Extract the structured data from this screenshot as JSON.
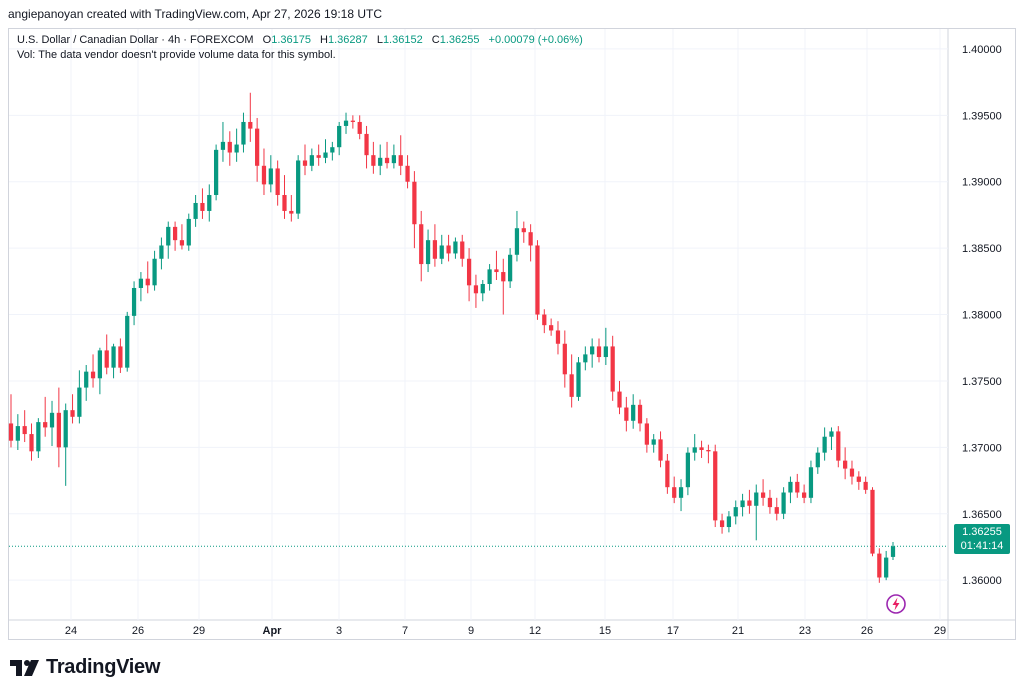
{
  "header": {
    "credit": "angiepanoyan created with TradingView.com, Apr 27, 2026 19:18 UTC"
  },
  "legend": {
    "symbol": "U.S. Dollar / Canadian Dollar · 4h · FOREXCOM",
    "o_label": "O",
    "o_value": "1.36175",
    "h_label": "H",
    "h_value": "1.36287",
    "l_label": "L",
    "l_value": "1.36152",
    "c_label": "C",
    "c_value": "1.36255",
    "change": "+0.00079 (+0.06%)",
    "volume_note": "Vol: The data vendor doesn't provide volume data for this symbol."
  },
  "price_badge": {
    "price": "1.36255",
    "countdown": "01:41:14"
  },
  "brand": {
    "name": "TradingView"
  },
  "colors": {
    "up": "#089981",
    "down": "#f23645",
    "grid": "#f0f3fa",
    "axis_text": "#131722"
  },
  "icons": {
    "replay": "bolt-circle-icon"
  },
  "chart_data": {
    "type": "candlestick",
    "y_axis": {
      "min": 1.357,
      "max": 1.4015,
      "ticks": [
        "1.40000",
        "1.39500",
        "1.39000",
        "1.38500",
        "1.38000",
        "1.37500",
        "1.37000",
        "1.36500",
        "1.36000"
      ]
    },
    "x_axis": {
      "ticks": [
        "24",
        "26",
        "29",
        "Apr",
        "3",
        "7",
        "9",
        "12",
        "15",
        "17",
        "21",
        "23",
        "26",
        "29"
      ]
    },
    "grid": true,
    "last_price": 1.36255,
    "candles": [
      [
        1.3718,
        1.374,
        1.37,
        1.3705
      ],
      [
        1.3705,
        1.3725,
        1.3698,
        1.3716
      ],
      [
        1.3716,
        1.3728,
        1.3704,
        1.371
      ],
      [
        1.371,
        1.3718,
        1.369,
        1.3697
      ],
      [
        1.3697,
        1.3722,
        1.3692,
        1.3719
      ],
      [
        1.3719,
        1.3738,
        1.3708,
        1.3715
      ],
      [
        1.3715,
        1.3735,
        1.3701,
        1.3726
      ],
      [
        1.3726,
        1.3745,
        1.3685,
        1.37
      ],
      [
        1.37,
        1.3733,
        1.3671,
        1.3728
      ],
      [
        1.3728,
        1.374,
        1.3718,
        1.3723
      ],
      [
        1.3723,
        1.3758,
        1.3718,
        1.3745
      ],
      [
        1.3745,
        1.3762,
        1.3735,
        1.3757
      ],
      [
        1.3757,
        1.377,
        1.3745,
        1.3752
      ],
      [
        1.3752,
        1.3775,
        1.374,
        1.3773
      ],
      [
        1.3773,
        1.3785,
        1.3755,
        1.376
      ],
      [
        1.376,
        1.3778,
        1.3752,
        1.3776
      ],
      [
        1.3776,
        1.3782,
        1.3756,
        1.376
      ],
      [
        1.376,
        1.3802,
        1.3757,
        1.3799
      ],
      [
        1.3799,
        1.3825,
        1.3792,
        1.382
      ],
      [
        1.382,
        1.3832,
        1.381,
        1.3827
      ],
      [
        1.3827,
        1.384,
        1.3816,
        1.3822
      ],
      [
        1.3822,
        1.3848,
        1.3818,
        1.3842
      ],
      [
        1.3842,
        1.3858,
        1.3834,
        1.3852
      ],
      [
        1.3852,
        1.387,
        1.3842,
        1.3866
      ],
      [
        1.3866,
        1.387,
        1.3848,
        1.3856
      ],
      [
        1.3856,
        1.3868,
        1.3849,
        1.3852
      ],
      [
        1.3852,
        1.3876,
        1.3848,
        1.3872
      ],
      [
        1.3872,
        1.389,
        1.3866,
        1.3884
      ],
      [
        1.3884,
        1.3895,
        1.3872,
        1.3878
      ],
      [
        1.3878,
        1.3898,
        1.387,
        1.389
      ],
      [
        1.389,
        1.3928,
        1.3886,
        1.3924
      ],
      [
        1.3924,
        1.3945,
        1.3915,
        1.393
      ],
      [
        1.393,
        1.3938,
        1.3912,
        1.3922
      ],
      [
        1.3922,
        1.394,
        1.3915,
        1.3928
      ],
      [
        1.3928,
        1.3952,
        1.3922,
        1.3945
      ],
      [
        1.3945,
        1.3967,
        1.393,
        1.394
      ],
      [
        1.394,
        1.3948,
        1.39,
        1.3912
      ],
      [
        1.3912,
        1.3925,
        1.389,
        1.3898
      ],
      [
        1.3898,
        1.392,
        1.3892,
        1.391
      ],
      [
        1.391,
        1.3916,
        1.3882,
        1.389
      ],
      [
        1.389,
        1.3905,
        1.3872,
        1.3878
      ],
      [
        1.3878,
        1.389,
        1.387,
        1.3876
      ],
      [
        1.3876,
        1.392,
        1.3872,
        1.3916
      ],
      [
        1.3916,
        1.3928,
        1.3905,
        1.3912
      ],
      [
        1.3912,
        1.3925,
        1.3908,
        1.392
      ],
      [
        1.392,
        1.3928,
        1.3912,
        1.3918
      ],
      [
        1.3918,
        1.3932,
        1.3914,
        1.3922
      ],
      [
        1.3922,
        1.393,
        1.3916,
        1.3926
      ],
      [
        1.3926,
        1.3945,
        1.392,
        1.3942
      ],
      [
        1.3942,
        1.3952,
        1.3936,
        1.3946
      ],
      [
        1.3946,
        1.395,
        1.394,
        1.3945
      ],
      [
        1.3945,
        1.395,
        1.3932,
        1.3936
      ],
      [
        1.3936,
        1.3942,
        1.391,
        1.392
      ],
      [
        1.392,
        1.393,
        1.3906,
        1.3912
      ],
      [
        1.3912,
        1.3928,
        1.3905,
        1.3918
      ],
      [
        1.3918,
        1.393,
        1.391,
        1.3914
      ],
      [
        1.3914,
        1.3928,
        1.391,
        1.392
      ],
      [
        1.392,
        1.3935,
        1.3905,
        1.3912
      ],
      [
        1.3912,
        1.392,
        1.3895,
        1.39
      ],
      [
        1.39,
        1.3908,
        1.385,
        1.3868
      ],
      [
        1.3868,
        1.3878,
        1.3825,
        1.3838
      ],
      [
        1.3838,
        1.3864,
        1.3832,
        1.3856
      ],
      [
        1.3856,
        1.3868,
        1.3836,
        1.3842
      ],
      [
        1.3842,
        1.386,
        1.3838,
        1.3852
      ],
      [
        1.3852,
        1.386,
        1.384,
        1.3846
      ],
      [
        1.3846,
        1.3858,
        1.3842,
        1.3855
      ],
      [
        1.3855,
        1.386,
        1.3836,
        1.3842
      ],
      [
        1.3842,
        1.385,
        1.381,
        1.3822
      ],
      [
        1.3822,
        1.383,
        1.3805,
        1.3816
      ],
      [
        1.3816,
        1.3826,
        1.381,
        1.3823
      ],
      [
        1.3823,
        1.3838,
        1.3818,
        1.3834
      ],
      [
        1.3834,
        1.3848,
        1.3826,
        1.3832
      ],
      [
        1.3832,
        1.3842,
        1.38,
        1.3825
      ],
      [
        1.3825,
        1.385,
        1.382,
        1.3845
      ],
      [
        1.3845,
        1.3878,
        1.384,
        1.3865
      ],
      [
        1.3865,
        1.387,
        1.3854,
        1.3862
      ],
      [
        1.3862,
        1.3868,
        1.384,
        1.3852
      ],
      [
        1.3852,
        1.3856,
        1.3796,
        1.38
      ],
      [
        1.38,
        1.3804,
        1.3786,
        1.3792
      ],
      [
        1.3792,
        1.3797,
        1.3784,
        1.3788
      ],
      [
        1.3788,
        1.3795,
        1.377,
        1.3778
      ],
      [
        1.3778,
        1.3788,
        1.3745,
        1.3755
      ],
      [
        1.3755,
        1.377,
        1.373,
        1.3738
      ],
      [
        1.3738,
        1.3768,
        1.3735,
        1.3764
      ],
      [
        1.3764,
        1.3776,
        1.3758,
        1.377
      ],
      [
        1.377,
        1.3782,
        1.376,
        1.3776
      ],
      [
        1.3776,
        1.3782,
        1.3764,
        1.3768
      ],
      [
        1.3768,
        1.379,
        1.3762,
        1.3776
      ],
      [
        1.3776,
        1.3784,
        1.3735,
        1.3742
      ],
      [
        1.3742,
        1.375,
        1.3725,
        1.373
      ],
      [
        1.373,
        1.3738,
        1.3712,
        1.372
      ],
      [
        1.372,
        1.374,
        1.3714,
        1.3732
      ],
      [
        1.3732,
        1.3736,
        1.3712,
        1.3718
      ],
      [
        1.3718,
        1.3722,
        1.3696,
        1.3702
      ],
      [
        1.3702,
        1.371,
        1.3696,
        1.3706
      ],
      [
        1.3706,
        1.3712,
        1.3685,
        1.369
      ],
      [
        1.369,
        1.3695,
        1.3665,
        1.367
      ],
      [
        1.367,
        1.3678,
        1.3658,
        1.3662
      ],
      [
        1.3662,
        1.3676,
        1.3652,
        1.367
      ],
      [
        1.367,
        1.37,
        1.3664,
        1.3696
      ],
      [
        1.3696,
        1.371,
        1.369,
        1.37
      ],
      [
        1.37,
        1.3705,
        1.3692,
        1.3698
      ],
      [
        1.3698,
        1.3702,
        1.3688,
        1.3697
      ],
      [
        1.3697,
        1.3702,
        1.364,
        1.3645
      ],
      [
        1.3645,
        1.365,
        1.3635,
        1.364
      ],
      [
        1.364,
        1.3652,
        1.3636,
        1.3648
      ],
      [
        1.3648,
        1.366,
        1.3642,
        1.3655
      ],
      [
        1.3655,
        1.3665,
        1.3648,
        1.366
      ],
      [
        1.366,
        1.3668,
        1.365,
        1.3656
      ],
      [
        1.3656,
        1.3672,
        1.363,
        1.3666
      ],
      [
        1.3666,
        1.3676,
        1.3656,
        1.3662
      ],
      [
        1.3662,
        1.3668,
        1.365,
        1.3655
      ],
      [
        1.3655,
        1.3662,
        1.3645,
        1.365
      ],
      [
        1.365,
        1.367,
        1.3646,
        1.3666
      ],
      [
        1.3666,
        1.3678,
        1.3658,
        1.3674
      ],
      [
        1.3674,
        1.368,
        1.3662,
        1.3666
      ],
      [
        1.3666,
        1.3672,
        1.3658,
        1.3662
      ],
      [
        1.3662,
        1.369,
        1.3658,
        1.3685
      ],
      [
        1.3685,
        1.37,
        1.368,
        1.3696
      ],
      [
        1.3696,
        1.3715,
        1.369,
        1.3708
      ],
      [
        1.3708,
        1.3715,
        1.3698,
        1.3712
      ],
      [
        1.3712,
        1.3716,
        1.3685,
        1.369
      ],
      [
        1.369,
        1.37,
        1.3676,
        1.3684
      ],
      [
        1.3684,
        1.369,
        1.3672,
        1.3678
      ],
      [
        1.3678,
        1.3682,
        1.3668,
        1.3674
      ],
      [
        1.3674,
        1.3678,
        1.3665,
        1.3668
      ],
      [
        1.3668,
        1.367,
        1.3618,
        1.362
      ],
      [
        1.362,
        1.3624,
        1.3598,
        1.3602
      ],
      [
        1.3602,
        1.3622,
        1.36,
        1.3617
      ],
      [
        1.36175,
        1.36287,
        1.36152,
        1.36255
      ]
    ]
  }
}
